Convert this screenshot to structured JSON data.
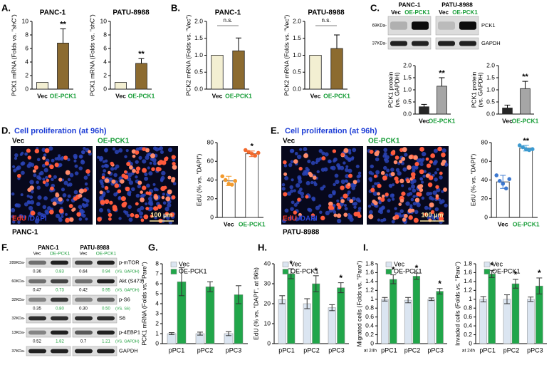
{
  "panel_labels": [
    "A.",
    "B.",
    "C.",
    "D.",
    "E.",
    "F.",
    "G.",
    "H.",
    "I."
  ],
  "blot_c": {
    "lines": [
      "PANC-1",
      "PATU-8988"
    ],
    "lanes": [
      "Vec",
      "OE-PCK1",
      "Vec",
      "OE-PCK1"
    ],
    "markers": [
      "69KDa-",
      "37KDa-"
    ],
    "proteins": [
      "PCK1",
      "GAPDH"
    ]
  },
  "proliferation": [
    {
      "heading": "Cell proliferation (at 96h)",
      "conditions": [
        "Vec",
        "OE-PCK1"
      ],
      "stain": [
        "EdU",
        "/DAPI"
      ],
      "scale": "100 μm",
      "cell_line": "PANC-1"
    },
    {
      "heading": "Cell proliferation (at 96h)",
      "conditions": [
        "Vec",
        "OE-PCK1"
      ],
      "stain": [
        "EdU",
        "/DAPI"
      ],
      "scale": "100 μm",
      "cell_line": "PATU-8988"
    }
  ],
  "blot_f": {
    "lines": [
      "PANC-1",
      "PATU-8988"
    ],
    "lanes": [
      "Vec",
      "OE-PCK1",
      "Vec",
      "OE-PCK1"
    ],
    "rows": [
      {
        "marker": "289KDa-",
        "protein": "p-mTOR",
        "quant": [
          "0.36",
          "0.83",
          "0.64",
          "0.94"
        ],
        "ref": "(VS. GAPDH)"
      },
      {
        "marker": "60KDa-",
        "protein": "Akt (S473)",
        "quant": [
          "0.47",
          "0.73",
          "0.42",
          "0.95"
        ],
        "ref": "(VS. GAPDH)"
      },
      {
        "marker": "32KDa-",
        "protein": "p-S6",
        "quant": [
          "0.35",
          "0.80",
          "0.30",
          "0.50"
        ],
        "ref": "(VS. S6)"
      },
      {
        "marker": "32KDa-",
        "protein": "S6"
      },
      {
        "marker": "13KDa-",
        "protein": "p-4EBP1",
        "quant": [
          "0.52",
          "1.82",
          "0.7",
          "1.21"
        ],
        "ref": "(VS. GAPDH)"
      },
      {
        "marker": "37KDa-",
        "protein": "GAPDH"
      }
    ]
  },
  "chart_data": [
    {
      "type": "bar",
      "title": "PANC-1",
      "ylabel": "PCK1 mRNA (Folds vs. \"shC\")",
      "categories": [
        "Vec",
        "OE-PCK1"
      ],
      "category_colors": [
        "#000000",
        "#1a9e3a"
      ],
      "values": [
        1,
        6.8
      ],
      "errors": [
        null,
        2.1
      ],
      "error_bars": "upper",
      "annotations": [
        null,
        "**"
      ],
      "colors": [
        "#f3efd2",
        "#8c6b30"
      ],
      "ylim": [
        0,
        10
      ],
      "yticks": [
        0,
        2,
        4,
        6,
        8,
        10
      ]
    },
    {
      "type": "bar",
      "title": "PATU-8988",
      "ylabel": "PCK1 mRNA (Folds vs. \"shC\")",
      "categories": [
        "Vec",
        "OE-PCK1"
      ],
      "category_colors": [
        "#000000",
        "#1a9e3a"
      ],
      "values": [
        1,
        3.8
      ],
      "errors": [
        null,
        0.7
      ],
      "error_bars": "upper",
      "annotations": [
        null,
        "**"
      ],
      "colors": [
        "#f3efd2",
        "#8c6b30"
      ],
      "ylim": [
        0,
        10
      ],
      "yticks": [
        0,
        2,
        4,
        6,
        8,
        10
      ]
    },
    {
      "type": "bar",
      "title": "PANC-1",
      "ylabel": "PCK2 mRNA (Folds vs. \"Vec\")",
      "categories": [
        "Vec",
        "OE-PCK1"
      ],
      "category_colors": [
        "#000000",
        "#1a9e3a"
      ],
      "values": [
        1,
        1.13
      ],
      "errors": [
        null,
        0.38
      ],
      "error_bars": "upper",
      "bracket_label": "n.s.",
      "colors": [
        "#f3efd2",
        "#8c6b30"
      ],
      "ylim": [
        0,
        2
      ],
      "yticks": [
        {
          "value": 0,
          "label": "0.0"
        },
        0.5,
        {
          "value": 1,
          "label": "1.0"
        },
        1.5,
        {
          "value": 2,
          "label": "2.0"
        }
      ]
    },
    {
      "type": "bar",
      "title": "PATU-8988",
      "ylabel": "PCK2 mRNA (Folds vs. \"Vec\")",
      "categories": [
        "Vec",
        "OE-PCK1"
      ],
      "category_colors": [
        "#000000",
        "#1a9e3a"
      ],
      "values": [
        1,
        1.2
      ],
      "errors": [
        null,
        0.4
      ],
      "error_bars": "upper",
      "bracket_label": "n.s.",
      "colors": [
        "#f3efd2",
        "#8c6b30"
      ],
      "ylim": [
        0,
        2
      ],
      "yticks": [
        {
          "value": 0,
          "label": "0.0"
        },
        0.5,
        {
          "value": 1,
          "label": "1.0"
        },
        1.5,
        {
          "value": 2,
          "label": "2.0"
        }
      ]
    },
    {
      "type": "bar",
      "ylabel": [
        "PCK1 protein",
        "(vs. GAPDH)"
      ],
      "categories": [
        "Vec",
        "OE-PCK1"
      ],
      "category_colors": [
        "#000000",
        "#1a9e3a"
      ],
      "values": [
        0.3,
        1.15
      ],
      "errors": [
        0.1,
        0.35
      ],
      "error_bars": "upper",
      "annotations": [
        null,
        "**"
      ],
      "colors": [
        "#262626",
        "#a6a6a6"
      ],
      "ylim": [
        0,
        2
      ],
      "yticks": [
        {
          "value": 0,
          "label": "0.0"
        },
        0.5,
        {
          "value": 1,
          "label": "1.0"
        },
        1.5,
        {
          "value": 2,
          "label": "2.0"
        }
      ]
    },
    {
      "type": "bar",
      "ylabel": [
        "PCK1 protein",
        "(vs. GAPDH)"
      ],
      "categories": [
        "Vec",
        "OE-PCK1"
      ],
      "category_colors": [
        "#000000",
        "#1a9e3a"
      ],
      "values": [
        0.25,
        1.05
      ],
      "errors": [
        0.12,
        0.3
      ],
      "error_bars": "upper",
      "annotations": [
        null,
        "**"
      ],
      "colors": [
        "#262626",
        "#a6a6a6"
      ],
      "ylim": [
        0,
        2
      ],
      "yticks": [
        {
          "value": 0,
          "label": "0.0"
        },
        0.5,
        {
          "value": 1,
          "label": "1.0"
        },
        1.5,
        {
          "value": 2,
          "label": "2.0"
        }
      ]
    },
    {
      "type": "bar",
      "ylabel": "EdU (% vs. \"DAPI\")",
      "categories": [
        "Vec",
        "OE-PCK1"
      ],
      "category_colors": [
        "#000000",
        "#1a9e3a"
      ],
      "values": [
        39,
        68
      ],
      "errors": [
        5,
        3
      ],
      "error_bars": "both",
      "annotations": [
        null,
        "*"
      ],
      "colors": [
        "#ffffff",
        "#ffffff"
      ],
      "points": [
        [
          44,
          40,
          36,
          35,
          39
        ],
        [
          72,
          70,
          68,
          66,
          69
        ]
      ],
      "point_colors": [
        "#f39a2c",
        "#f2692c"
      ],
      "ylim": [
        0,
        80
      ],
      "yticks": [
        0,
        20,
        40,
        60,
        80
      ]
    },
    {
      "type": "bar",
      "ylabel": "EdU (% vs. \"DAPI\")",
      "categories": [
        "Vec",
        "OE-PCK1"
      ],
      "category_colors": [
        "#000000",
        "#1a9e3a"
      ],
      "values": [
        38,
        74
      ],
      "errors": [
        7,
        3
      ],
      "error_bars": "both",
      "annotations": [
        null,
        "**"
      ],
      "colors": [
        "#ffffff",
        "#ffffff"
      ],
      "points": [
        [
          45,
          39,
          36,
          31,
          41
        ],
        [
          77,
          75,
          73,
          72,
          73
        ]
      ],
      "point_colors": [
        "#3c78d0",
        "#3c9ad0"
      ],
      "ylim": [
        0,
        80
      ],
      "yticks": [
        0,
        20,
        40,
        60,
        80
      ]
    },
    {
      "type": "grouped_bar",
      "ylabel": "PCK1 mRNA (Folds vs. \"Pare\")",
      "categories": [
        "pPC1",
        "pPC2",
        "pPC3"
      ],
      "legend": "upper-left",
      "series": [
        {
          "name": "Vec",
          "color": "#dbe5f1",
          "values": [
            1,
            1,
            1
          ],
          "errors": [
            0.1,
            0.15,
            0.2
          ]
        },
        {
          "name": "OE-PCK1",
          "color": "#21a64a",
          "values": [
            6.2,
            5.7,
            4.9
          ],
          "errors": [
            1.4,
            0.5,
            0.9
          ]
        }
      ],
      "ylim": [
        0,
        8
      ],
      "yticks": [
        0,
        1,
        2,
        3,
        4,
        5,
        6,
        7,
        8
      ]
    },
    {
      "type": "grouped_bar",
      "ylabel": "EdU (% vs. \"DAPI\", at 96h)",
      "categories": [
        "pPC1",
        "pPC2",
        "pPC3"
      ],
      "legend": "upper-left",
      "series": [
        {
          "name": "Vec",
          "color": "#dbe5f1",
          "values": [
            22,
            20,
            18
          ],
          "errors": [
            2,
            2.5,
            1.5
          ]
        },
        {
          "name": "OE-PCK1",
          "color": "#21a64a",
          "values": [
            35,
            30,
            28
          ],
          "errors": [
            2.5,
            4,
            2.5
          ],
          "annotations": [
            "*",
            "*",
            "*"
          ]
        }
      ],
      "ylim": [
        0,
        40
      ],
      "yticks": [
        0,
        10,
        20,
        30,
        40
      ]
    },
    {
      "type": "grouped_bar",
      "ylabel": "Migrated cells (Folds vs. \"Pare\")",
      "note": "at 24h",
      "categories": [
        "pPC1",
        "pPC2",
        "pPC3"
      ],
      "legend": "upper-left",
      "series": [
        {
          "name": "Vec",
          "color": "#dbe5f1",
          "values": [
            1,
            0.98,
            1
          ],
          "errors": [
            0.04,
            0.06,
            0.03
          ]
        },
        {
          "name": "OE-PCK1",
          "color": "#21a64a",
          "values": [
            1.45,
            1.52,
            1.18
          ],
          "errors": [
            0.1,
            0.07,
            0.06
          ],
          "annotations": [
            "*",
            "*",
            "*"
          ]
        }
      ],
      "ylim": [
        0,
        1.8
      ],
      "yticks": [
        0,
        0.2,
        0.4,
        0.6,
        0.8,
        1,
        1.2,
        1.4,
        1.6,
        1.8
      ]
    },
    {
      "type": "grouped_bar",
      "ylabel": "Invaded cells (Folds vs. \"Pare\")",
      "note": "at 24h",
      "categories": [
        "pPC1",
        "pPC2",
        "pPC3"
      ],
      "legend": "upper-left",
      "series": [
        {
          "name": "Vec",
          "color": "#dbe5f1",
          "values": [
            1,
            1,
            1
          ],
          "errors": [
            0.06,
            0.1,
            0.05
          ]
        },
        {
          "name": "OE-PCK1",
          "color": "#21a64a",
          "values": [
            1.57,
            1.35,
            1.3
          ],
          "errors": [
            0.08,
            0.1,
            0.18
          ],
          "annotations": [
            "*",
            "*",
            "*"
          ]
        }
      ],
      "ylim": [
        0,
        1.8
      ],
      "yticks": [
        0,
        0.2,
        0.4,
        0.6,
        0.8,
        1,
        1.2,
        1.4,
        1.6,
        1.8
      ]
    }
  ]
}
